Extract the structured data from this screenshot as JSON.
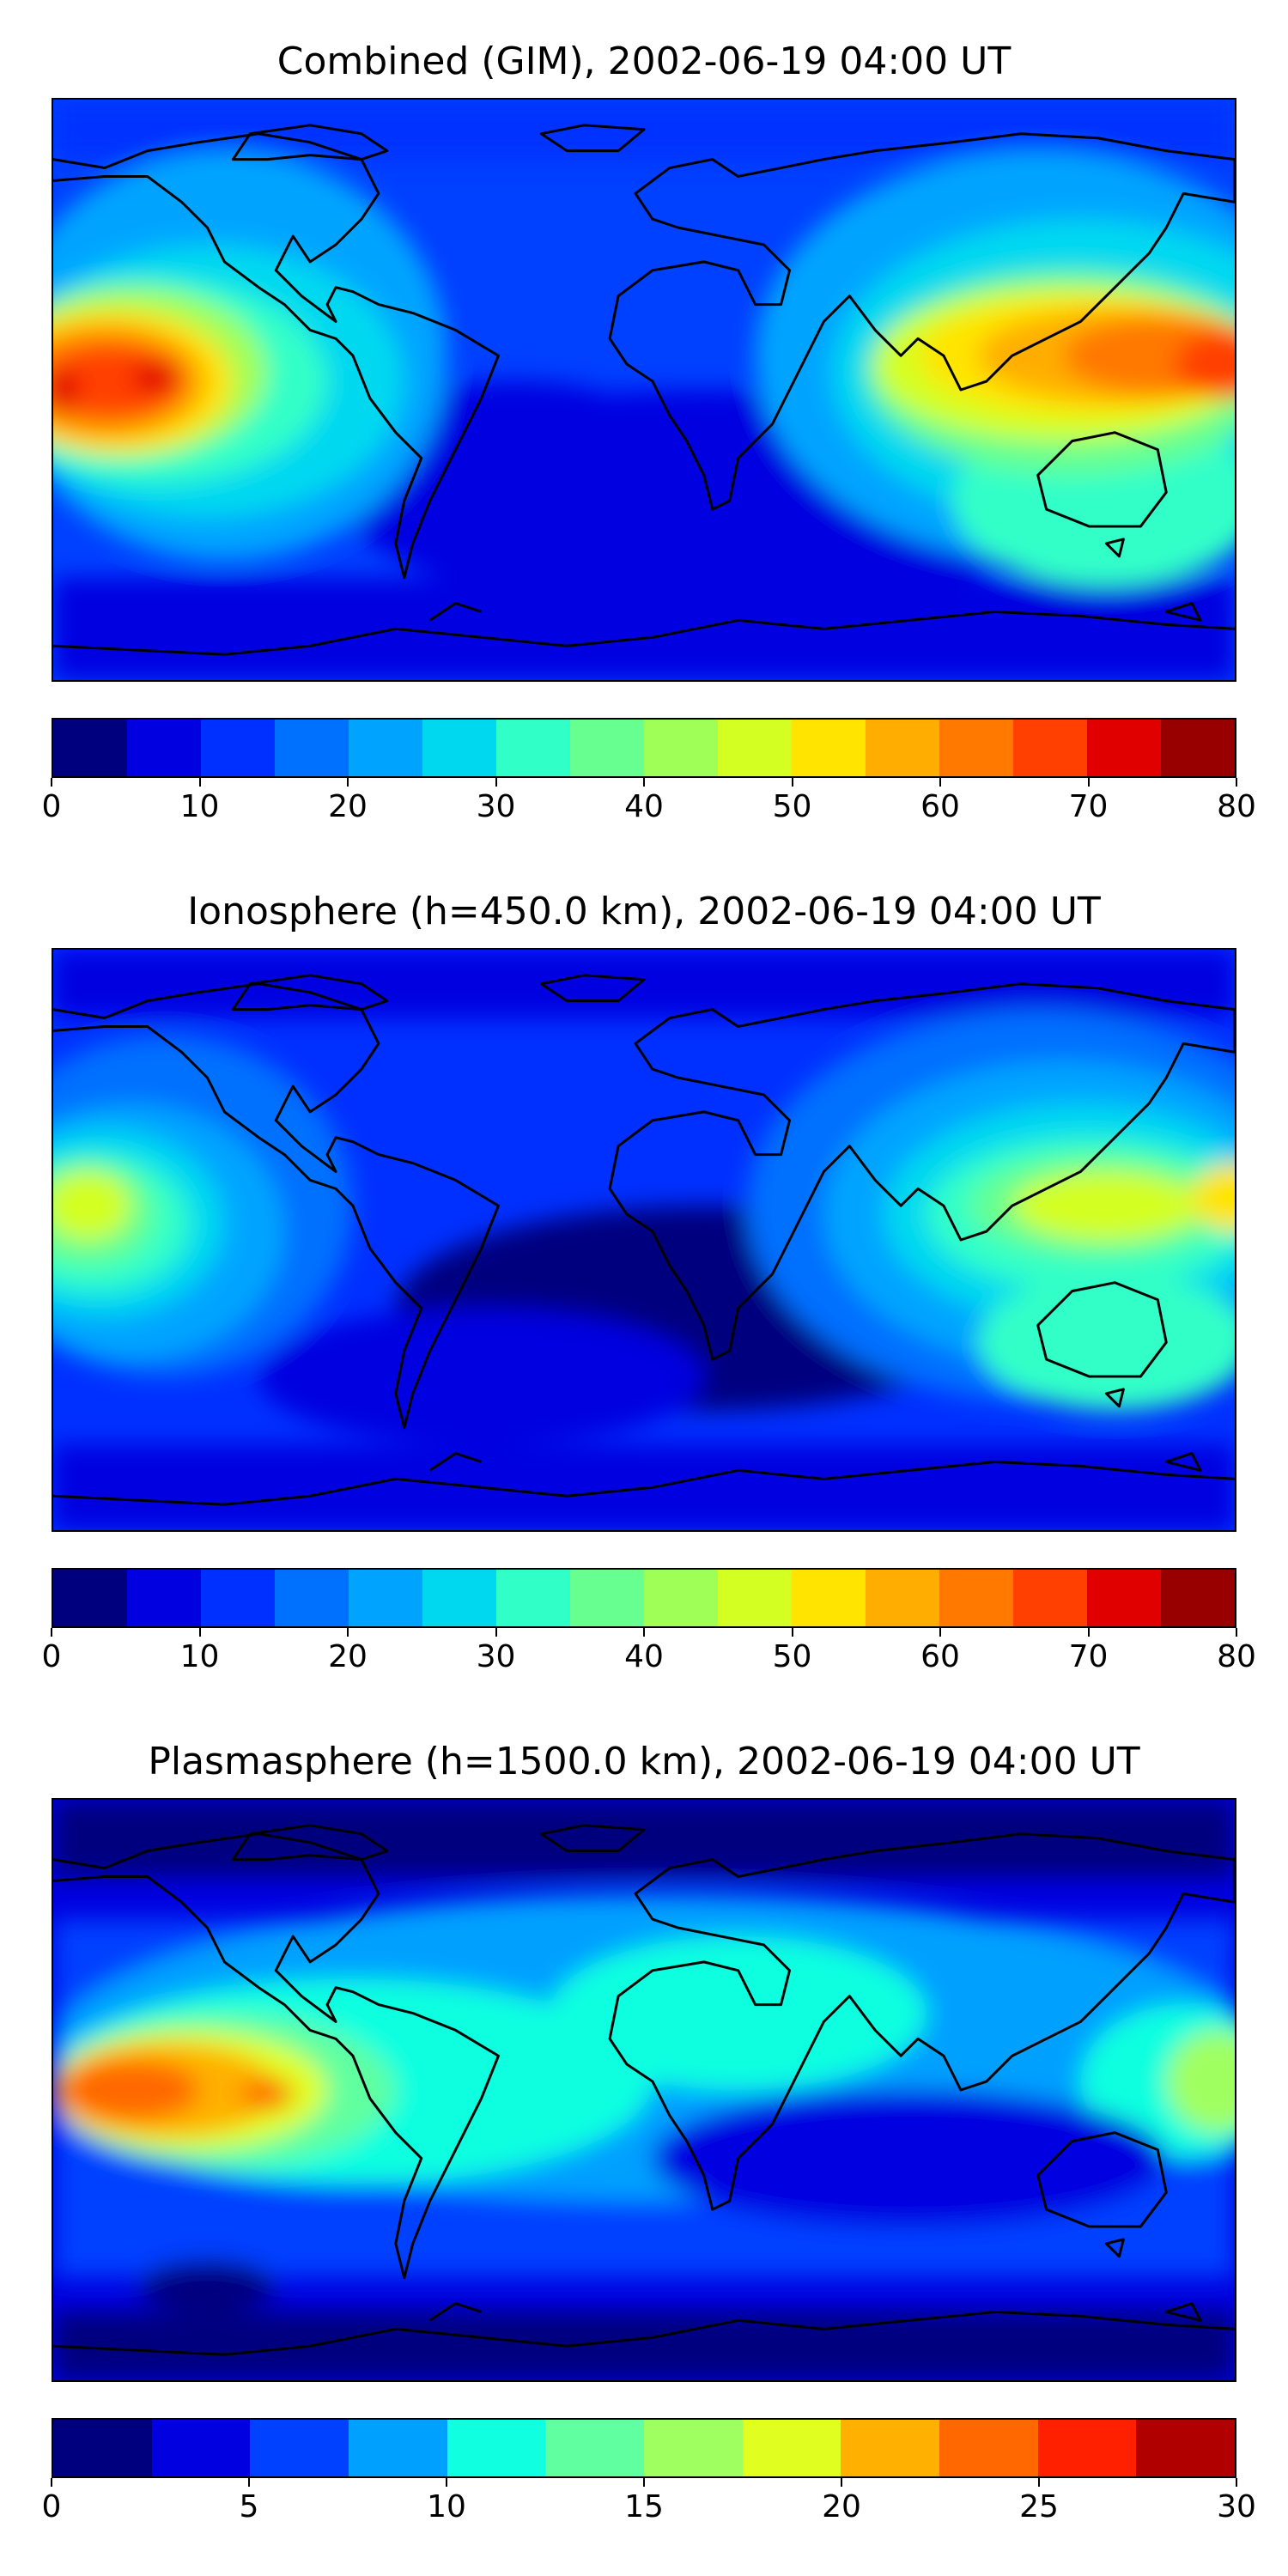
{
  "panels": [
    {
      "title": "Combined (GIM), 2002-06-19 04:00 UT",
      "colorbar": {
        "colors": [
          "#00007f",
          "#0000e0",
          "#0030ff",
          "#0070ff",
          "#00a4ff",
          "#00d8f0",
          "#30ffc8",
          "#66ff90",
          "#a0ff56",
          "#d4ff22",
          "#ffe400",
          "#ffae00",
          "#ff7800",
          "#ff4000",
          "#e00000",
          "#980000"
        ],
        "ticks": [
          "0",
          "10",
          "20",
          "30",
          "40",
          "50",
          "60",
          "70",
          "80"
        ]
      },
      "field": {
        "background": "#0040ff",
        "blobs": [
          {
            "color": "#0000e0",
            "shape": "band-south"
          },
          {
            "color": "#00a4ff",
            "shape": "americas-belt"
          },
          {
            "color": "#ff7800",
            "shape": "pacific-west"
          },
          {
            "color": "#ff4000",
            "shape": "asia-east"
          },
          {
            "color": "#ffe400",
            "shape": "asia-core"
          }
        ]
      }
    },
    {
      "title": "Ionosphere  (h=450.0 km), 2002-06-19 04:00 UT",
      "colorbar": {
        "colors": [
          "#00007f",
          "#0000e0",
          "#0030ff",
          "#0070ff",
          "#00a4ff",
          "#00d8f0",
          "#30ffc8",
          "#66ff90",
          "#a0ff56",
          "#d4ff22",
          "#ffe400",
          "#ffae00",
          "#ff7800",
          "#ff4000",
          "#e00000",
          "#980000"
        ],
        "ticks": [
          "0",
          "10",
          "20",
          "30",
          "40",
          "50",
          "60",
          "70",
          "80"
        ]
      },
      "field": {
        "background": "#0030ff"
      }
    },
    {
      "title": "Plasmasphere (h=1500.0 km), 2002-06-19 04:00 UT",
      "colorbar": {
        "colors": [
          "#00007f",
          "#0000e0",
          "#0040ff",
          "#00a0ff",
          "#10ffe0",
          "#60ffa0",
          "#a0ff60",
          "#e0ff20",
          "#ffb000",
          "#ff6800",
          "#ff2000",
          "#b00000"
        ],
        "ticks": [
          "0",
          "5",
          "10",
          "15",
          "20",
          "25",
          "30"
        ]
      },
      "field": {
        "background": "#0000e0"
      }
    }
  ]
}
